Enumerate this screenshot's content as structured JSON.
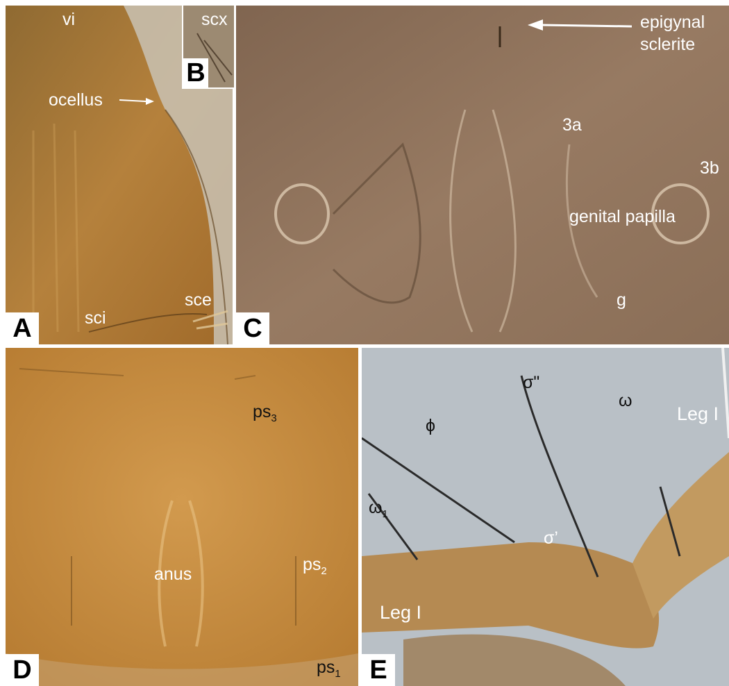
{
  "panels": {
    "a": {
      "badge": "A",
      "labels": {
        "vi": "vi",
        "ocellus": "ocellus",
        "sci": "sci",
        "sce": "sce"
      }
    },
    "b": {
      "badge": "B",
      "labels": {
        "scx": "scx"
      }
    },
    "c": {
      "badge": "C",
      "labels": {
        "epigynal1": "epigynal",
        "epigynal2": "sclerite",
        "s3a": "3a",
        "s3b": "3b",
        "papilla": "genital papilla",
        "g": "g"
      }
    },
    "d": {
      "badge": "D",
      "labels": {
        "ps3": "ps",
        "ps3sub": "3",
        "anus": "anus",
        "ps2": "ps",
        "ps2sub": "2",
        "ps1": "ps",
        "ps1sub": "1"
      }
    },
    "e": {
      "badge": "E",
      "labels": {
        "sigma2": "σ\"",
        "omega": "ω",
        "legI_top": "Leg I",
        "phi": "ϕ",
        "omega1": "ω",
        "omega1sub": "1",
        "sigma1": "σ’",
        "legI_bottom": "Leg I"
      }
    }
  },
  "colors": {
    "amber": "#c98a3a",
    "sepia": "#8c6e55",
    "grey_blue": "#b9c0c6",
    "separator": "#ffffff"
  }
}
